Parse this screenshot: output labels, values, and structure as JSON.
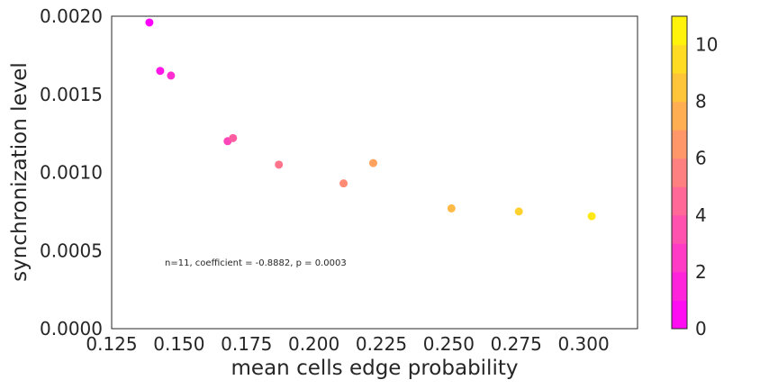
{
  "chart_data": {
    "type": "scatter",
    "xlabel": "mean cells edge probability",
    "ylabel": "synchronization level",
    "xlim": [
      0.125,
      0.32
    ],
    "ylim": [
      0.0,
      0.002
    ],
    "x_ticks": [
      "0.125",
      "0.150",
      "0.175",
      "0.200",
      "0.225",
      "0.250",
      "0.275",
      "0.300"
    ],
    "y_ticks": [
      "0.0000",
      "0.0005",
      "0.0010",
      "0.0015",
      "0.0020"
    ],
    "grid": false,
    "points": [
      {
        "x": 0.139,
        "y": 0.00196,
        "c": 0
      },
      {
        "x": 0.143,
        "y": 0.00165,
        "c": 1
      },
      {
        "x": 0.147,
        "y": 0.00162,
        "c": 2
      },
      {
        "x": 0.168,
        "y": 0.0012,
        "c": 3
      },
      {
        "x": 0.17,
        "y": 0.00122,
        "c": 4
      },
      {
        "x": 0.187,
        "y": 0.00105,
        "c": 5
      },
      {
        "x": 0.211,
        "y": 0.00093,
        "c": 6
      },
      {
        "x": 0.222,
        "y": 0.00106,
        "c": 7
      },
      {
        "x": 0.251,
        "y": 0.00077,
        "c": 8
      },
      {
        "x": 0.276,
        "y": 0.00075,
        "c": 9
      },
      {
        "x": 0.303,
        "y": 0.00072,
        "c": 10
      }
    ],
    "annotation": "n=11, coefficient = -0.8882, p = 0.0003",
    "colorbar": {
      "range": [
        0,
        11
      ],
      "ticks": [
        "0",
        "2",
        "4",
        "6",
        "8",
        "10"
      ],
      "color_low": "#ff00ff",
      "color_high": "#ffff00"
    }
  }
}
